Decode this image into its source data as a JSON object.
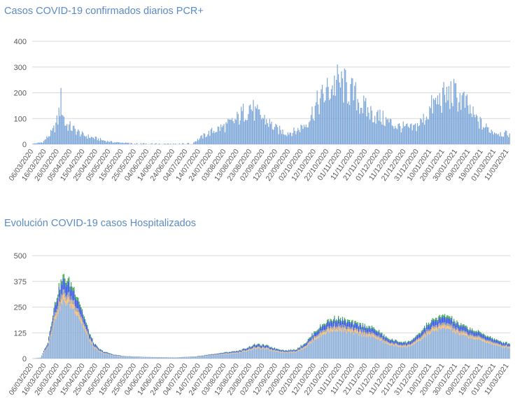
{
  "chart_data": [
    {
      "type": "bar",
      "title": "Casos COVID-19 confirmados diarios PCR+",
      "yticks": [
        0,
        100,
        200,
        300,
        400
      ],
      "ylim": [
        0,
        400
      ],
      "grid": true,
      "xlabels": [
        "06/03/2020",
        "16/03/2020",
        "26/03/2020",
        "05/04/2020",
        "15/04/2020",
        "25/04/2020",
        "05/05/2020",
        "15/05/2020",
        "25/05/2020",
        "04/06/2020",
        "14/06/2020",
        "24/06/2020",
        "04/07/2020",
        "14/07/2020",
        "24/07/2020",
        "03/08/2020",
        "13/08/2020",
        "23/08/2020",
        "02/09/2020",
        "12/09/2020",
        "22/09/2020",
        "02/10/2020",
        "12/10/2020",
        "22/10/2020",
        "01/11/2020",
        "11/11/2020",
        "21/11/2020",
        "01/12/2020",
        "11/12/2020",
        "21/12/2020",
        "31/12/2020",
        "10/01/2021",
        "20/01/2021",
        "30/01/2021",
        "09/02/2021",
        "19/02/2021",
        "01/03/2021",
        "11/03/2021"
      ],
      "series": [
        {
          "color": "#7aa5d8",
          "envelope": [
            [
              0,
              2
            ],
            [
              10,
              8
            ],
            [
              20,
              50
            ],
            [
              25,
              95
            ],
            [
              28,
              170
            ],
            [
              32,
              80
            ],
            [
              40,
              60
            ],
            [
              50,
              35
            ],
            [
              60,
              25
            ],
            [
              70,
              15
            ],
            [
              80,
              8
            ],
            [
              100,
              4
            ],
            [
              130,
              3
            ],
            [
              150,
              5
            ],
            [
              160,
              10
            ],
            [
              170,
              35
            ],
            [
              180,
              55
            ],
            [
              190,
              70
            ],
            [
              200,
              90
            ],
            [
              210,
              130
            ],
            [
              215,
              150
            ],
            [
              220,
              120
            ],
            [
              230,
              95
            ],
            [
              240,
              60
            ],
            [
              250,
              45
            ],
            [
              260,
              50
            ],
            [
              270,
              80
            ],
            [
              280,
              150
            ],
            [
              290,
              200
            ],
            [
              300,
              240
            ],
            [
              310,
              220
            ],
            [
              320,
              180
            ],
            [
              330,
              130
            ],
            [
              340,
              110
            ],
            [
              350,
              90
            ],
            [
              360,
              70
            ],
            [
              375,
              60
            ],
            [
              385,
              90
            ],
            [
              395,
              150
            ],
            [
              405,
              180
            ],
            [
              415,
              195
            ],
            [
              425,
              170
            ],
            [
              435,
              110
            ],
            [
              445,
              70
            ],
            [
              455,
              50
            ],
            [
              465,
              40
            ],
            [
              471,
              40
            ]
          ]
        }
      ]
    },
    {
      "type": "stacked-bar",
      "title": "Evolución COVID-19 casos  Hospitalizados",
      "yticks": [
        0,
        125,
        250,
        375,
        500
      ],
      "ylim": [
        0,
        500
      ],
      "grid": true,
      "xlabels": [
        "06/03/2020",
        "16/03/2020",
        "26/03/2020",
        "05/04/2020",
        "15/04/2020",
        "25/04/2020",
        "05/05/2020",
        "15/05/2020",
        "25/05/2020",
        "04/06/2020",
        "14/06/2020",
        "24/06/2020",
        "04/07/2020",
        "14/07/2020",
        "24/07/2020",
        "03/08/2020",
        "13/08/2020",
        "23/08/2020",
        "02/09/2020",
        "12/09/2020",
        "22/09/2020",
        "02/10/2020",
        "12/10/2020",
        "22/10/2020",
        "01/11/2020",
        "11/11/2020",
        "21/11/2020",
        "01/12/2020",
        "11/12/2020",
        "21/12/2020",
        "31/12/2020",
        "10/01/2021",
        "20/01/2021",
        "30/01/2021",
        "09/02/2021",
        "19/02/2021",
        "01/03/2021",
        "11/03/2021"
      ],
      "total_envelope": [
        [
          0,
          0
        ],
        [
          8,
          5
        ],
        [
          15,
          80
        ],
        [
          20,
          220
        ],
        [
          25,
          330
        ],
        [
          30,
          395
        ],
        [
          35,
          380
        ],
        [
          40,
          350
        ],
        [
          45,
          300
        ],
        [
          50,
          220
        ],
        [
          55,
          140
        ],
        [
          60,
          80
        ],
        [
          65,
          50
        ],
        [
          70,
          35
        ],
        [
          80,
          20
        ],
        [
          90,
          12
        ],
        [
          110,
          8
        ],
        [
          140,
          5
        ],
        [
          160,
          10
        ],
        [
          175,
          20
        ],
        [
          190,
          30
        ],
        [
          205,
          40
        ],
        [
          215,
          60
        ],
        [
          220,
          70
        ],
        [
          230,
          65
        ],
        [
          240,
          50
        ],
        [
          250,
          40
        ],
        [
          260,
          45
        ],
        [
          270,
          80
        ],
        [
          280,
          140
        ],
        [
          290,
          180
        ],
        [
          300,
          200
        ],
        [
          310,
          185
        ],
        [
          320,
          170
        ],
        [
          330,
          160
        ],
        [
          340,
          140
        ],
        [
          350,
          100
        ],
        [
          360,
          85
        ],
        [
          370,
          80
        ],
        [
          380,
          110
        ],
        [
          390,
          170
        ],
        [
          400,
          200
        ],
        [
          410,
          210
        ],
        [
          420,
          170
        ],
        [
          430,
          150
        ],
        [
          440,
          130
        ],
        [
          450,
          110
        ],
        [
          460,
          85
        ],
        [
          471,
          75
        ]
      ],
      "series": [
        {
          "color": "#8fb0d9",
          "share": 0.7
        },
        {
          "color": "#f5b86e",
          "share": 0.06
        },
        {
          "color": "#9f9f9f",
          "share": 0.06
        },
        {
          "color": "#3355e0",
          "share": 0.13
        },
        {
          "color": "#3aa84a",
          "share": 0.05
        }
      ]
    }
  ]
}
